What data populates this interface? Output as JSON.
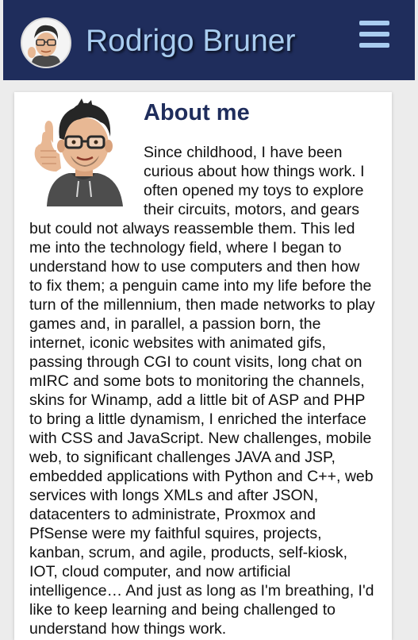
{
  "header": {
    "title": "Rodrigo Bruner",
    "menu_icon": "hamburger-menu-icon"
  },
  "about": {
    "title": "About me",
    "text": "Since childhood, I have been curious about how things work. I often opened my toys to explore their circuits, motors, and gears but could not always reassemble them. This led me into the technology field, where I began to understand how to use computers and then how to fix them; a penguin came into my life before the turn of the millennium, then made networks to play games and, in parallel, a passion born, the internet, iconic websites with animated gifs, passing through CGI to count visits, long chat on mIRC and some bots to monitoring the channels, skins for Winamp, add a little bit of ASP and PHP to bring a little dynamism, I enriched the interface with CSS and JavaScript. New challenges, mobile web, to significant challenges JAVA and JSP, embedded applications with Python and C++, web services with longs XMLs and after JSON, datacenters to administrate, Proxmox and PfSense were my faithful squires, projects, kanban, scrum, and agile, products, self-kiosk, IOT, cloud computer, and now artificial intelligence… And just as long as I'm breathing, I'd like to keep learning and being challenged to understand how things work."
  },
  "colors": {
    "header_bg": "#1f2d5c",
    "title_color": "#a9cdf0",
    "heading_color": "#1f2d5c",
    "page_bg": "#ececec"
  }
}
